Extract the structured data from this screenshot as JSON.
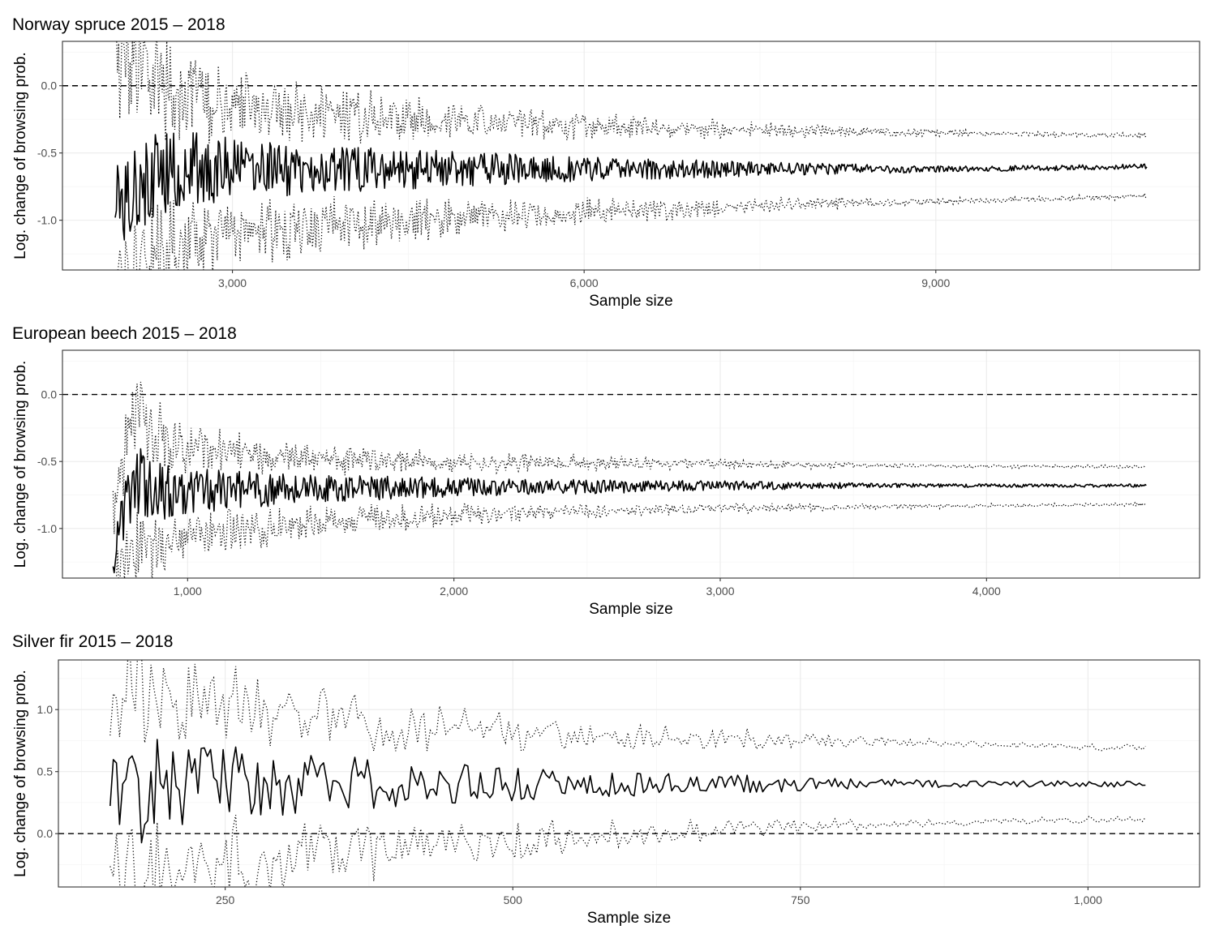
{
  "chart_data": [
    {
      "type": "line",
      "title": "Norway spruce 2015 – 2018",
      "xlabel": "Sample size",
      "ylabel": "Log. change of browsing prob.",
      "xlim": [
        1550,
        11250
      ],
      "ylim": [
        -1.37,
        0.33
      ],
      "xticks": [
        3000,
        6000,
        9000
      ],
      "xtick_labels": [
        "3,000",
        "6,000",
        "9,000"
      ],
      "yticks": [
        -1.0,
        -0.5,
        0.0
      ],
      "ytick_labels": [
        "-1.0",
        "-0.5",
        "0.0"
      ],
      "reference_line": 0.0,
      "x_range": [
        2000,
        10800
      ],
      "series": [
        {
          "style": "estimate",
          "x": [
            2000,
            2500,
            3000,
            4000,
            5000,
            6000,
            7000,
            8000,
            9000,
            10000,
            10800
          ],
          "values": [
            -0.75,
            -0.62,
            -0.62,
            -0.62,
            -0.62,
            -0.62,
            -0.62,
            -0.62,
            -0.62,
            -0.61,
            -0.6
          ]
        },
        {
          "style": "upper bound",
          "x": [
            2000,
            2500,
            3000,
            4000,
            5000,
            6000,
            7000,
            8000,
            9000,
            10000,
            10800
          ],
          "values": [
            0.3,
            -0.05,
            -0.15,
            -0.22,
            -0.27,
            -0.3,
            -0.32,
            -0.34,
            -0.35,
            -0.36,
            -0.37
          ]
        },
        {
          "style": "lower bound",
          "x": [
            2000,
            2500,
            3000,
            4000,
            5000,
            6000,
            7000,
            8000,
            9000,
            10000,
            10800
          ],
          "values": [
            -1.3,
            -1.2,
            -1.1,
            -1.03,
            -0.98,
            -0.94,
            -0.91,
            -0.88,
            -0.86,
            -0.84,
            -0.82
          ]
        }
      ]
    },
    {
      "type": "line",
      "title": "European beech 2015 – 2018",
      "xlabel": "Sample size",
      "ylabel": "Log. change of browsing prob.",
      "xlim": [
        530,
        4800
      ],
      "ylim": [
        -1.37,
        0.33
      ],
      "xticks": [
        1000,
        2000,
        3000,
        4000
      ],
      "xtick_labels": [
        "1,000",
        "2,000",
        "3,000",
        "4,000"
      ],
      "yticks": [
        -1.0,
        -0.5,
        0.0
      ],
      "ytick_labels": [
        "-1.0",
        "-0.5",
        "0.0"
      ],
      "reference_line": 0.0,
      "x_range": [
        720,
        4600
      ],
      "series": [
        {
          "style": "estimate",
          "x": [
            720,
            800,
            900,
            1000,
            1500,
            2000,
            2500,
            3000,
            3500,
            4000,
            4600
          ],
          "values": [
            -1.22,
            -0.6,
            -0.72,
            -0.72,
            -0.7,
            -0.69,
            -0.69,
            -0.68,
            -0.68,
            -0.68,
            -0.68
          ]
        },
        {
          "style": "upper bound",
          "x": [
            720,
            800,
            900,
            1000,
            1500,
            2000,
            2500,
            3000,
            3500,
            4000,
            4600
          ],
          "values": [
            -0.85,
            -0.1,
            -0.3,
            -0.4,
            -0.48,
            -0.5,
            -0.51,
            -0.52,
            -0.53,
            -0.535,
            -0.54
          ]
        },
        {
          "style": "lower bound",
          "x": [
            720,
            800,
            900,
            1000,
            1500,
            2000,
            2500,
            3000,
            3500,
            4000,
            4600
          ],
          "values": [
            -1.37,
            -1.2,
            -1.12,
            -1.05,
            -0.95,
            -0.9,
            -0.87,
            -0.85,
            -0.84,
            -0.83,
            -0.82
          ]
        }
      ]
    },
    {
      "type": "line",
      "title": "Silver fir 2015 – 2018",
      "xlabel": "Sample size",
      "ylabel": "Log. change of browsing prob.",
      "xlim": [
        105,
        1097
      ],
      "ylim": [
        -0.43,
        1.4
      ],
      "xticks": [
        250,
        500,
        750,
        1000
      ],
      "xtick_labels": [
        "250",
        "500",
        "750",
        "1,000"
      ],
      "yticks": [
        0.0,
        0.5,
        1.0
      ],
      "ytick_labels": [
        "0.0",
        "0.5",
        "1.0"
      ],
      "reference_line": 0.0,
      "x_range": [
        150,
        1050
      ],
      "series": [
        {
          "style": "estimate",
          "x": [
            150,
            175,
            200,
            250,
            300,
            400,
            500,
            600,
            700,
            800,
            900,
            1000,
            1050
          ],
          "values": [
            0.37,
            0.35,
            0.4,
            0.4,
            0.41,
            0.41,
            0.4,
            0.4,
            0.4,
            0.4,
            0.4,
            0.4,
            0.4
          ]
        },
        {
          "style": "upper bound",
          "x": [
            150,
            175,
            200,
            250,
            300,
            400,
            500,
            600,
            700,
            800,
            900,
            1000,
            1050
          ],
          "values": [
            1.1,
            1.3,
            1.05,
            1.0,
            0.95,
            0.88,
            0.82,
            0.78,
            0.76,
            0.74,
            0.72,
            0.7,
            0.69
          ]
        },
        {
          "style": "lower bound",
          "x": [
            150,
            175,
            200,
            250,
            300,
            400,
            500,
            600,
            700,
            800,
            900,
            1000,
            1050
          ],
          "values": [
            -0.37,
            -0.4,
            -0.35,
            -0.25,
            -0.18,
            -0.1,
            -0.05,
            0.0,
            0.04,
            0.07,
            0.09,
            0.11,
            0.12
          ]
        }
      ]
    }
  ]
}
